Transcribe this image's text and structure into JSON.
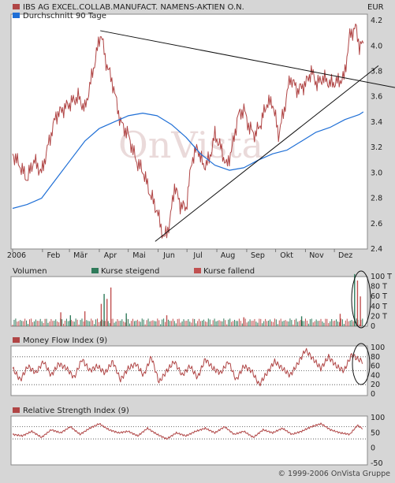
{
  "header": {
    "series_label": "IBS AG EXCEL.COLLAB.MANUFACT. NAMENS-AKTIEN O.N.",
    "avg_label": "Durchschnitt 90 Tage",
    "currency": "EUR"
  },
  "colors": {
    "price": "#b04545",
    "avg": "#1f6fd6",
    "up": "#2f7a5a",
    "down": "#c05050",
    "trend": "#111111",
    "panel": "#ffffff",
    "page": "#d6d6d6"
  },
  "watermark": "OnVista",
  "footer": "© 1999-2006 OnVista Gruppe",
  "chart_data": [
    {
      "type": "line",
      "name": "price",
      "x_labels": [
        "2006",
        "Feb",
        "Mär",
        "Apr",
        "Mai",
        "Jun",
        "Jul",
        "Aug",
        "Sep",
        "Okt",
        "Nov",
        "Dez"
      ],
      "y_ticks": [
        "4.2",
        "4.0",
        "3.8",
        "3.6",
        "3.4",
        "3.2",
        "3.0",
        "2.8",
        "2.6",
        "2.4"
      ],
      "ylim": [
        2.4,
        4.25
      ],
      "x_range_days": [
        0,
        365
      ],
      "series": [
        {
          "name": "IBS AG EXCEL.COLLAB.MANUFACT. NAMENS-AKTIEN O.N.",
          "x": [
            0,
            8,
            15,
            22,
            30,
            38,
            45,
            52,
            60,
            68,
            75,
            82,
            90,
            92,
            96,
            104,
            112,
            120,
            128,
            136,
            142,
            150,
            157,
            163,
            168,
            174,
            180,
            186,
            192,
            198,
            204,
            210,
            216,
            222,
            228,
            234,
            240,
            246,
            252,
            258,
            264,
            270,
            276,
            282,
            288,
            296,
            304,
            310,
            316,
            322,
            330,
            338,
            344,
            350,
            356,
            360,
            364
          ],
          "y": [
            3.15,
            3.05,
            2.95,
            3.1,
            3.0,
            3.25,
            3.45,
            3.5,
            3.55,
            3.6,
            3.5,
            3.75,
            4.05,
            4.1,
            3.9,
            3.7,
            3.4,
            3.3,
            3.1,
            3.0,
            2.85,
            2.7,
            2.48,
            2.6,
            2.9,
            2.75,
            2.72,
            3.1,
            3.2,
            3.05,
            3.1,
            3.3,
            3.2,
            3.05,
            3.2,
            3.45,
            3.5,
            3.35,
            3.3,
            3.4,
            3.55,
            3.55,
            3.3,
            3.5,
            3.75,
            3.65,
            3.7,
            3.8,
            3.7,
            3.75,
            3.7,
            3.72,
            3.75,
            4.08,
            4.15,
            4.0,
            4.02
          ]
        },
        {
          "name": "Durchschnitt 90 Tage",
          "x": [
            0,
            15,
            30,
            45,
            60,
            75,
            90,
            105,
            120,
            135,
            150,
            165,
            180,
            195,
            210,
            225,
            240,
            255,
            270,
            285,
            300,
            315,
            330,
            345,
            360,
            364
          ],
          "y": [
            2.72,
            2.75,
            2.8,
            2.95,
            3.1,
            3.25,
            3.35,
            3.4,
            3.45,
            3.47,
            3.45,
            3.38,
            3.28,
            3.15,
            3.06,
            3.02,
            3.04,
            3.1,
            3.15,
            3.18,
            3.25,
            3.32,
            3.36,
            3.42,
            3.46,
            3.48
          ]
        }
      ],
      "trendlines": [
        {
          "x": [
            91,
            364
          ],
          "y": [
            4.12,
            3.72
          ]
        },
        {
          "x": [
            148,
            364
          ],
          "y": [
            2.46,
            3.75
          ]
        }
      ]
    },
    {
      "type": "bar",
      "name": "volume",
      "title": "Volumen",
      "legend": [
        "Kurse steigend",
        "Kurse fallend"
      ],
      "y_ticks": [
        "100 T",
        "80 T",
        "60 T",
        "40 T",
        "20 T",
        "0"
      ],
      "ylim": [
        0,
        100
      ],
      "spikes": [
        {
          "x": 50,
          "v": 28,
          "dir": "down"
        },
        {
          "x": 60,
          "v": 22,
          "dir": "up"
        },
        {
          "x": 75,
          "v": 30,
          "dir": "down"
        },
        {
          "x": 92,
          "v": 45,
          "dir": "down"
        },
        {
          "x": 95,
          "v": 65,
          "dir": "up"
        },
        {
          "x": 98,
          "v": 55,
          "dir": "down"
        },
        {
          "x": 102,
          "v": 78,
          "dir": "down"
        },
        {
          "x": 118,
          "v": 26,
          "dir": "up"
        },
        {
          "x": 160,
          "v": 22,
          "dir": "down"
        },
        {
          "x": 240,
          "v": 18,
          "dir": "down"
        },
        {
          "x": 300,
          "v": 20,
          "dir": "up"
        },
        {
          "x": 340,
          "v": 25,
          "dir": "down"
        },
        {
          "x": 355,
          "v": 105,
          "dir": "up"
        },
        {
          "x": 358,
          "v": 92,
          "dir": "down"
        },
        {
          "x": 361,
          "v": 60,
          "dir": "down"
        }
      ]
    },
    {
      "type": "line",
      "name": "mfi",
      "title": "Money Flow Index (9)",
      "y_ticks": [
        "100",
        "80",
        "60",
        "40",
        "20",
        "0"
      ],
      "ylim": [
        0,
        100
      ],
      "ref_lines": [
        80,
        50,
        20
      ],
      "series": [
        {
          "name": "Money Flow Index (9)",
          "x": [
            0,
            8,
            16,
            24,
            32,
            40,
            48,
            56,
            64,
            72,
            80,
            88,
            96,
            104,
            112,
            120,
            128,
            136,
            144,
            152,
            160,
            168,
            176,
            184,
            192,
            200,
            208,
            216,
            224,
            232,
            240,
            248,
            256,
            264,
            272,
            280,
            288,
            296,
            304,
            312,
            320,
            328,
            336,
            344,
            352,
            358,
            364
          ],
          "y": [
            55,
            30,
            60,
            45,
            70,
            40,
            65,
            55,
            35,
            75,
            50,
            60,
            45,
            70,
            30,
            55,
            65,
            40,
            80,
            25,
            50,
            70,
            40,
            60,
            35,
            75,
            55,
            45,
            70,
            30,
            60,
            50,
            20,
            45,
            70,
            55,
            40,
            65,
            95,
            75,
            55,
            80,
            60,
            50,
            85,
            75,
            70
          ]
        }
      ]
    },
    {
      "type": "line",
      "name": "rsi",
      "title": "Relative Strength Index (9)",
      "y_ticks": [
        "100",
        "50",
        "0",
        "-50"
      ],
      "ylim": [
        -50,
        100
      ],
      "ref_lines": [
        70,
        30
      ],
      "series": [
        {
          "name": "Relative Strength Index (9)",
          "x": [
            0,
            10,
            20,
            30,
            40,
            50,
            60,
            70,
            80,
            90,
            100,
            110,
            120,
            130,
            140,
            150,
            160,
            170,
            180,
            190,
            200,
            210,
            220,
            230,
            240,
            250,
            260,
            270,
            280,
            290,
            300,
            310,
            320,
            330,
            340,
            350,
            358,
            364
          ],
          "y": [
            45,
            40,
            55,
            35,
            60,
            50,
            70,
            45,
            65,
            80,
            60,
            50,
            55,
            40,
            65,
            45,
            30,
            50,
            40,
            55,
            65,
            50,
            70,
            45,
            55,
            35,
            60,
            50,
            65,
            45,
            55,
            70,
            80,
            60,
            50,
            45,
            75,
            62
          ]
        }
      ]
    }
  ]
}
